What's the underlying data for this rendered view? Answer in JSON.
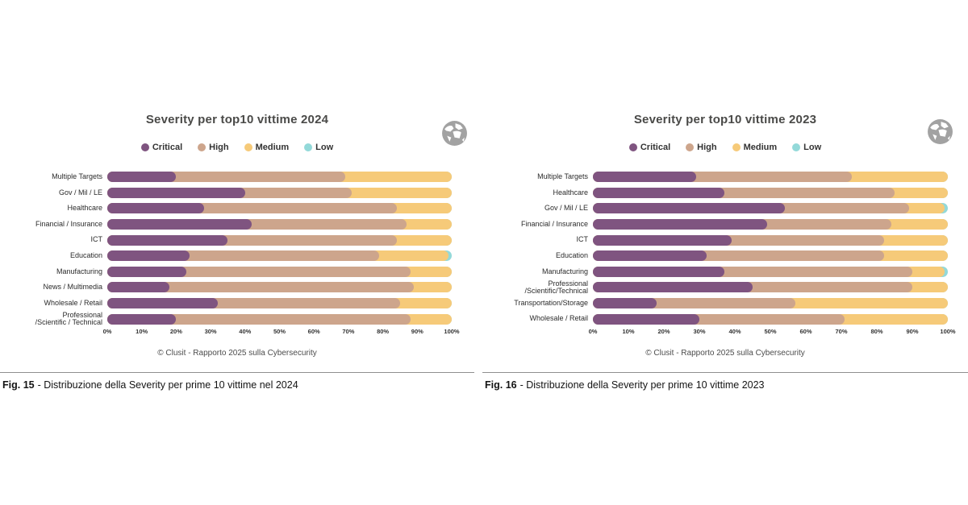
{
  "severity_colors": {
    "critical": "#7f5480",
    "high": "#cda58c",
    "medium": "#f6ca79",
    "low": "#93d9d9"
  },
  "figures": [
    {
      "title": "Severity per top10 vittime 2024",
      "source_note": "© Clusit - Rapporto 2025 sulla Cybersecurity",
      "caption_prefix": "Fig. 15",
      "caption_rest": "- Distribuzione della Severity per prime 10 vittime nel 2024",
      "globe_icon": "globe-icon"
    },
    {
      "title": "Severity per top10 vittime 2023",
      "source_note": "© Clusit - Rapporto 2025 sulla Cybersecurity",
      "caption_prefix": "Fig. 16",
      "caption_rest": "- Distribuzione della Severity per prime 10 vittime 2023",
      "globe_icon": "globe-icon"
    }
  ],
  "chart_data": [
    {
      "type": "bar",
      "orientation": "horizontal",
      "stacked": true,
      "title": "Severity per top10 vittime 2024",
      "legend_position": "top",
      "xlim": [
        0,
        100
      ],
      "x_tick_labels": [
        "0%",
        "10%",
        "20%",
        "30%",
        "40%",
        "50%",
        "60%",
        "70%",
        "80%",
        "90%",
        "100%"
      ],
      "categories": [
        "Multiple Targets",
        "Gov / Mil / LE",
        "Healthcare",
        "Financial / Insurance",
        "ICT",
        "Education",
        "Manufacturing",
        "News / Multimedia",
        "Wholesale / Retail",
        "Professional\n/Scientific / Technical"
      ],
      "series": [
        {
          "name": "Critical",
          "color": "#7f5480",
          "values": [
            20,
            40,
            28,
            42,
            35,
            24,
            23,
            18,
            32,
            20
          ]
        },
        {
          "name": "High",
          "color": "#cda58c",
          "values": [
            49,
            31,
            56,
            45,
            49,
            55,
            65,
            71,
            53,
            68
          ]
        },
        {
          "name": "Medium",
          "color": "#f6ca79",
          "values": [
            31,
            29,
            16,
            13,
            16,
            20,
            12,
            11,
            15,
            12
          ]
        },
        {
          "name": "Low",
          "color": "#93d9d9",
          "values": [
            0,
            0,
            0,
            0,
            0,
            1,
            0,
            0,
            0,
            0
          ]
        }
      ]
    },
    {
      "type": "bar",
      "orientation": "horizontal",
      "stacked": true,
      "title": "Severity per top10 vittime 2023",
      "legend_position": "top",
      "xlim": [
        0,
        100
      ],
      "x_tick_labels": [
        "0%",
        "10%",
        "20%",
        "30%",
        "40%",
        "50%",
        "60%",
        "70%",
        "80%",
        "90%",
        "100%"
      ],
      "categories": [
        "Multiple Targets",
        "Healthcare",
        "Gov / Mil / LE",
        "Financial / Insurance",
        "ICT",
        "Education",
        "Manufacturing",
        "Professional\n/Scientific/Technical",
        "Transportation/Storage",
        "Wholesale / Retail"
      ],
      "series": [
        {
          "name": "Critical",
          "color": "#7f5480",
          "values": [
            29,
            37,
            54,
            49,
            39,
            32,
            37,
            45,
            18,
            30
          ]
        },
        {
          "name": "High",
          "color": "#cda58c",
          "values": [
            44,
            48,
            35,
            35,
            43,
            50,
            53,
            45,
            39,
            41
          ]
        },
        {
          "name": "Medium",
          "color": "#f6ca79",
          "values": [
            27,
            15,
            10,
            16,
            18,
            18,
            9,
            10,
            43,
            29
          ]
        },
        {
          "name": "Low",
          "color": "#93d9d9",
          "values": [
            0,
            0,
            1,
            0,
            0,
            0,
            1,
            0,
            0,
            0
          ]
        }
      ]
    }
  ]
}
